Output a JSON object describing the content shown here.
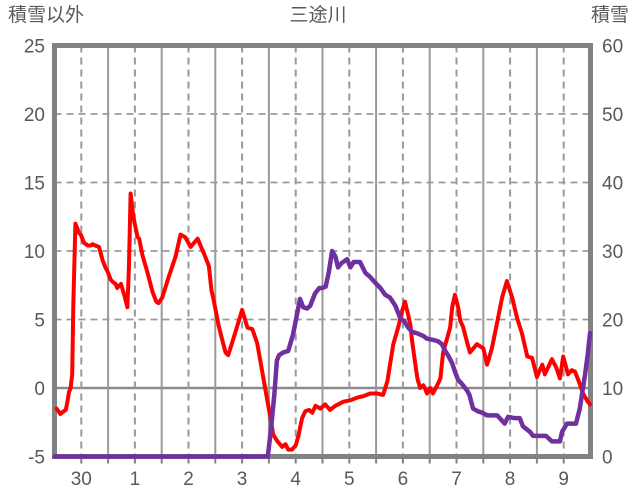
{
  "chart_data": {
    "type": "line",
    "title": "三途川",
    "x_tick_labels": [
      "30",
      "1",
      "2",
      "3",
      "4",
      "5",
      "6",
      "7",
      "8",
      "9"
    ],
    "x_note": "labels are day numbers centered mid-day; chart spans 10 days",
    "left_axis": {
      "label": "積雪以外",
      "range": [
        -5,
        25
      ],
      "ticks": [
        25,
        20,
        15,
        10,
        5,
        0,
        -5
      ],
      "dashed_gridlines": [
        20,
        15,
        10,
        5
      ],
      "zero_line": 0
    },
    "right_axis": {
      "label": "積雪",
      "range": [
        0,
        60
      ],
      "ticks": [
        60,
        50,
        40,
        30,
        20,
        10,
        0
      ]
    },
    "legend": "none",
    "grid": {
      "vertical_solid": "every day boundary",
      "vertical_dashed": "every half day",
      "horizontal": "dashed every 5 left-axis units, solid at 0"
    },
    "series": [
      {
        "name": "積雪以外",
        "axis": "left",
        "color": "#FF0000",
        "points": [
          [
            0.04,
            -1.5
          ],
          [
            0.11,
            -1.9
          ],
          [
            0.17,
            -1.7
          ],
          [
            0.21,
            -1.6
          ],
          [
            0.24,
            -1.0
          ],
          [
            0.27,
            -0.3
          ],
          [
            0.3,
            0.0
          ],
          [
            0.33,
            1.0
          ],
          [
            0.35,
            6.0
          ],
          [
            0.39,
            12.0
          ],
          [
            0.46,
            11.3
          ],
          [
            0.49,
            11.2
          ],
          [
            0.55,
            10.6
          ],
          [
            0.62,
            10.4
          ],
          [
            0.68,
            10.4
          ],
          [
            0.71,
            10.5
          ],
          [
            0.76,
            10.4
          ],
          [
            0.83,
            10.3
          ],
          [
            0.9,
            9.3
          ],
          [
            0.95,
            8.8
          ],
          [
            0.99,
            8.5
          ],
          [
            1.05,
            7.9
          ],
          [
            1.1,
            7.7
          ],
          [
            1.14,
            7.6
          ],
          [
            1.17,
            7.3
          ],
          [
            1.24,
            7.6
          ],
          [
            1.3,
            6.8
          ],
          [
            1.36,
            5.9
          ],
          [
            1.39,
            9.0
          ],
          [
            1.42,
            14.2
          ],
          [
            1.47,
            12.5
          ],
          [
            1.55,
            11.0
          ],
          [
            1.58,
            10.9
          ],
          [
            1.64,
            9.7
          ],
          [
            1.73,
            8.5
          ],
          [
            1.83,
            7.0
          ],
          [
            1.9,
            6.3
          ],
          [
            1.94,
            6.2
          ],
          [
            2.01,
            6.6
          ],
          [
            2.13,
            8.1
          ],
          [
            2.26,
            9.6
          ],
          [
            2.35,
            11.2
          ],
          [
            2.44,
            11.0
          ],
          [
            2.54,
            10.3
          ],
          [
            2.67,
            10.9
          ],
          [
            2.79,
            9.8
          ],
          [
            2.88,
            8.9
          ],
          [
            2.93,
            7.1
          ],
          [
            2.96,
            6.6
          ],
          [
            3.06,
            4.6
          ],
          [
            3.13,
            3.5
          ],
          [
            3.19,
            2.6
          ],
          [
            3.24,
            2.4
          ],
          [
            3.37,
            4.0
          ],
          [
            3.5,
            5.7
          ],
          [
            3.6,
            4.4
          ],
          [
            3.69,
            4.3
          ],
          [
            3.78,
            3.3
          ],
          [
            3.84,
            2.0
          ],
          [
            3.93,
            0.0
          ],
          [
            4.03,
            -2.2
          ],
          [
            4.08,
            -3.4
          ],
          [
            4.16,
            -3.9
          ],
          [
            4.25,
            -4.3
          ],
          [
            4.31,
            -4.1
          ],
          [
            4.36,
            -4.5
          ],
          [
            4.43,
            -4.5
          ],
          [
            4.5,
            -4.2
          ],
          [
            4.55,
            -3.5
          ],
          [
            4.62,
            -2.2
          ],
          [
            4.68,
            -1.7
          ],
          [
            4.75,
            -1.6
          ],
          [
            4.81,
            -1.8
          ],
          [
            4.87,
            -1.3
          ],
          [
            4.96,
            -1.5
          ],
          [
            5.05,
            -1.2
          ],
          [
            5.14,
            -1.6
          ],
          [
            5.24,
            -1.3
          ],
          [
            5.39,
            -1.0
          ],
          [
            5.52,
            -0.9
          ],
          [
            5.65,
            -0.7
          ],
          [
            5.76,
            -0.6
          ],
          [
            5.89,
            -0.4
          ],
          [
            6.02,
            -0.4
          ],
          [
            6.13,
            -0.5
          ],
          [
            6.21,
            0.5
          ],
          [
            6.32,
            3.2
          ],
          [
            6.41,
            4.4
          ],
          [
            6.49,
            5.7
          ],
          [
            6.54,
            6.3
          ],
          [
            6.6,
            5.3
          ],
          [
            6.64,
            4.6
          ],
          [
            6.67,
            3.5
          ],
          [
            6.73,
            1.8
          ],
          [
            6.77,
            0.7
          ],
          [
            6.82,
            0.0
          ],
          [
            6.88,
            0.2
          ],
          [
            6.92,
            -0.1
          ],
          [
            6.95,
            -0.4
          ],
          [
            7.01,
            0.0
          ],
          [
            7.06,
            -0.4
          ],
          [
            7.14,
            0.2
          ],
          [
            7.2,
            0.7
          ],
          [
            7.25,
            2.6
          ],
          [
            7.33,
            3.7
          ],
          [
            7.38,
            4.4
          ],
          [
            7.42,
            5.9
          ],
          [
            7.47,
            6.8
          ],
          [
            7.53,
            5.9
          ],
          [
            7.57,
            4.9
          ],
          [
            7.62,
            4.5
          ],
          [
            7.7,
            3.3
          ],
          [
            7.75,
            2.6
          ],
          [
            7.88,
            3.2
          ],
          [
            8.0,
            2.9
          ],
          [
            8.07,
            1.7
          ],
          [
            8.16,
            2.9
          ],
          [
            8.26,
            4.8
          ],
          [
            8.35,
            6.6
          ],
          [
            8.44,
            7.8
          ],
          [
            8.54,
            6.6
          ],
          [
            8.63,
            5.1
          ],
          [
            8.72,
            4.0
          ],
          [
            8.82,
            2.3
          ],
          [
            8.91,
            2.2
          ],
          [
            9.0,
            0.8
          ],
          [
            9.1,
            1.7
          ],
          [
            9.15,
            1.0
          ],
          [
            9.28,
            2.1
          ],
          [
            9.36,
            1.5
          ],
          [
            9.43,
            0.7
          ],
          [
            9.49,
            2.3
          ],
          [
            9.58,
            1.0
          ],
          [
            9.65,
            1.3
          ],
          [
            9.71,
            1.2
          ],
          [
            9.79,
            0.4
          ],
          [
            9.86,
            -0.4
          ],
          [
            9.95,
            -1.0
          ],
          [
            9.99,
            -1.2
          ]
        ]
      },
      {
        "name": "積雪",
        "axis": "right",
        "color": "#7030A0",
        "points": [
          [
            0.0,
            0
          ],
          [
            1.0,
            0
          ],
          [
            2.0,
            0
          ],
          [
            3.0,
            0
          ],
          [
            3.98,
            0
          ],
          [
            4.04,
            4
          ],
          [
            4.1,
            9
          ],
          [
            4.15,
            14
          ],
          [
            4.19,
            14.8
          ],
          [
            4.27,
            15.2
          ],
          [
            4.36,
            15.4
          ],
          [
            4.45,
            17.8
          ],
          [
            4.52,
            20.6
          ],
          [
            4.58,
            23
          ],
          [
            4.64,
            21.8
          ],
          [
            4.71,
            21.6
          ],
          [
            4.77,
            22
          ],
          [
            4.86,
            23.8
          ],
          [
            4.94,
            24.6
          ],
          [
            5.0,
            24.6
          ],
          [
            5.06,
            24.8
          ],
          [
            5.12,
            27
          ],
          [
            5.18,
            30
          ],
          [
            5.24,
            29.2
          ],
          [
            5.29,
            27.6
          ],
          [
            5.35,
            28.2
          ],
          [
            5.46,
            28.8
          ],
          [
            5.52,
            27.6
          ],
          [
            5.58,
            28.4
          ],
          [
            5.7,
            28.4
          ],
          [
            5.8,
            26.8
          ],
          [
            5.89,
            26.2
          ],
          [
            5.98,
            25.4
          ],
          [
            6.08,
            24.6
          ],
          [
            6.17,
            23.6
          ],
          [
            6.26,
            23.2
          ],
          [
            6.36,
            22
          ],
          [
            6.45,
            20.2
          ],
          [
            6.52,
            19.8
          ],
          [
            6.6,
            18.8
          ],
          [
            6.67,
            18.2
          ],
          [
            6.76,
            18
          ],
          [
            6.88,
            17.6
          ],
          [
            6.95,
            17.2
          ],
          [
            7.08,
            17
          ],
          [
            7.16,
            16.8
          ],
          [
            7.23,
            16.4
          ],
          [
            7.29,
            15.4
          ],
          [
            7.34,
            14.8
          ],
          [
            7.42,
            13.6
          ],
          [
            7.47,
            12.4
          ],
          [
            7.53,
            11.2
          ],
          [
            7.6,
            10.6
          ],
          [
            7.7,
            9.6
          ],
          [
            7.74,
            9
          ],
          [
            7.81,
            7
          ],
          [
            7.9,
            6.6
          ],
          [
            7.98,
            6.4
          ],
          [
            8.07,
            6
          ],
          [
            8.26,
            6
          ],
          [
            8.4,
            4.8
          ],
          [
            8.46,
            5.8
          ],
          [
            8.58,
            5.6
          ],
          [
            8.68,
            5.6
          ],
          [
            8.74,
            4.4
          ],
          [
            8.87,
            3.6
          ],
          [
            8.93,
            3
          ],
          [
            9.17,
            3
          ],
          [
            9.28,
            2.2
          ],
          [
            9.43,
            2.2
          ],
          [
            9.47,
            3.6
          ],
          [
            9.56,
            4.8
          ],
          [
            9.73,
            4.8
          ],
          [
            9.8,
            7
          ],
          [
            9.84,
            9
          ],
          [
            9.9,
            12
          ],
          [
            9.95,
            15
          ],
          [
            9.99,
            18
          ]
        ]
      }
    ]
  },
  "colors": {
    "series_red": "#FF0000",
    "series_purple": "#7030A0",
    "plot_border": "#828282",
    "gridline": "#9A9A9A",
    "zero_line": "#8A8A8A",
    "text": "#595959",
    "background": "#FFFFFF"
  }
}
